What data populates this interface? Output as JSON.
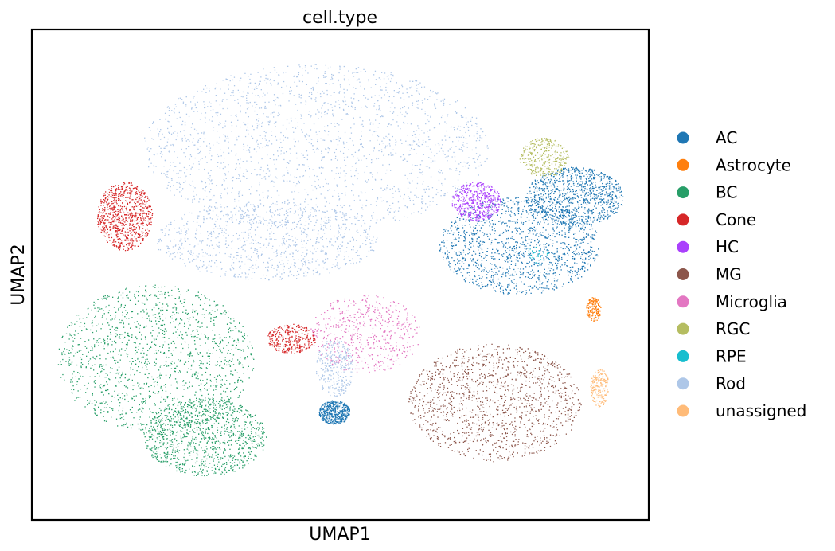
{
  "chart_data": {
    "type": "scatter",
    "title": "cell.type",
    "xlabel": "UMAP1",
    "ylabel": "UMAP2",
    "xlim": [
      0,
      100
    ],
    "ylim": [
      0,
      100
    ],
    "grid": false,
    "ticks": false,
    "legend_position": "right",
    "series": [
      {
        "name": "AC",
        "color": "#1f77b4",
        "clusters": [
          {
            "cx": 79,
            "cy": 56,
            "rx": 13,
            "ry": 10,
            "density": 2.2
          },
          {
            "cx": 88,
            "cy": 66,
            "rx": 8,
            "ry": 6,
            "density": 1.6
          },
          {
            "cx": 49,
            "cy": 22,
            "rx": 2.5,
            "ry": 2.5,
            "density": 0.8
          }
        ]
      },
      {
        "name": "Astrocyte",
        "color": "#ff7f0e",
        "clusters": [
          {
            "cx": 91,
            "cy": 43,
            "rx": 1.2,
            "ry": 2.5,
            "density": 0.25
          }
        ]
      },
      {
        "name": "BC",
        "color": "#279e68",
        "clusters": [
          {
            "cx": 20,
            "cy": 33,
            "rx": 16,
            "ry": 15,
            "density": 2.4
          },
          {
            "cx": 28,
            "cy": 17,
            "rx": 10,
            "ry": 8,
            "density": 1.8
          }
        ]
      },
      {
        "name": "Cone",
        "color": "#d62728",
        "clusters": [
          {
            "cx": 15,
            "cy": 62,
            "rx": 4.5,
            "ry": 7,
            "density": 1.3
          },
          {
            "cx": 42,
            "cy": 37,
            "rx": 4,
            "ry": 3,
            "density": 0.5
          }
        ]
      },
      {
        "name": "HC",
        "color": "#aa40fc",
        "clusters": [
          {
            "cx": 72,
            "cy": 65,
            "rx": 4,
            "ry": 4,
            "density": 0.8
          }
        ]
      },
      {
        "name": "MG",
        "color": "#8c564b",
        "clusters": [
          {
            "cx": 75,
            "cy": 24,
            "rx": 14,
            "ry": 12,
            "density": 2.2
          }
        ]
      },
      {
        "name": "Microglia",
        "color": "#e377c2",
        "clusters": [
          {
            "cx": 54,
            "cy": 38,
            "rx": 9,
            "ry": 8,
            "density": 0.9
          }
        ]
      },
      {
        "name": "RGC",
        "color": "#b5bd61",
        "clusters": [
          {
            "cx": 83,
            "cy": 74,
            "rx": 4,
            "ry": 4,
            "density": 0.5
          }
        ]
      },
      {
        "name": "RPE",
        "color": "#17becf",
        "clusters": [
          {
            "cx": 82,
            "cy": 54,
            "rx": 2,
            "ry": 2,
            "density": 0.05
          }
        ]
      },
      {
        "name": "Rod",
        "color": "#aec7e8",
        "clusters": [
          {
            "cx": 46,
            "cy": 76,
            "rx": 28,
            "ry": 17,
            "density": 3.2
          },
          {
            "cx": 38,
            "cy": 57,
            "rx": 18,
            "ry": 8,
            "density": 1.6
          },
          {
            "cx": 49,
            "cy": 31,
            "rx": 3,
            "ry": 6,
            "density": 0.5
          }
        ]
      },
      {
        "name": "unassigned",
        "color": "#ffbb78",
        "clusters": [
          {
            "cx": 92,
            "cy": 27,
            "rx": 1.5,
            "ry": 4,
            "density": 0.3
          }
        ]
      }
    ]
  }
}
